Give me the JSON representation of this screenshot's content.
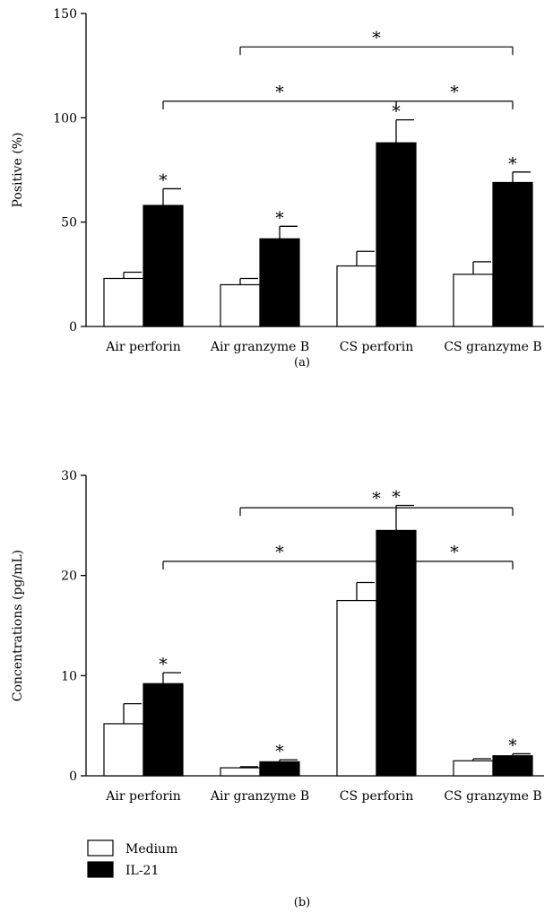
{
  "chart_data": [
    {
      "type": "bar",
      "caption": "(a)",
      "ylabel": "Positive (%)",
      "xlabel": "",
      "ylim": [
        0,
        150
      ],
      "yticks": [
        0,
        50,
        100,
        150
      ],
      "categories": [
        "Air perforin",
        "Air granzyme B",
        "CS perforin",
        "CS granzyme B"
      ],
      "series": [
        {
          "name": "Medium",
          "color": "#ffffff",
          "values": [
            23,
            20,
            29,
            25
          ],
          "errors": [
            3,
            3,
            7,
            6
          ],
          "markers": [
            "",
            "",
            "",
            ""
          ]
        },
        {
          "name": "IL-21",
          "color": "#000000",
          "values": [
            58,
            42,
            88,
            69
          ],
          "errors": [
            8,
            6,
            11,
            5
          ],
          "markers": [
            "*",
            "*",
            "*",
            "*"
          ]
        }
      ],
      "brackets": [
        {
          "from": [
            1,
            0
          ],
          "to": [
            3,
            1
          ],
          "level": 0.76,
          "label": "*"
        },
        {
          "from": [
            0,
            1
          ],
          "to": [
            2,
            1
          ],
          "level": 0.6,
          "label": "*"
        },
        {
          "from": [
            2,
            1
          ],
          "to": [
            3,
            1
          ],
          "level": 0.6,
          "label": "*"
        }
      ]
    },
    {
      "type": "bar",
      "caption": "(b)",
      "ylabel": "Concentrations (pg/mL)",
      "xlabel": "",
      "ylim": [
        0,
        30
      ],
      "yticks": [
        0,
        10,
        20,
        30
      ],
      "categories": [
        "Air perforin",
        "Air granzyme B",
        "CS perforin",
        "CS granzyme B"
      ],
      "series": [
        {
          "name": "Medium",
          "color": "#ffffff",
          "values": [
            5.2,
            0.8,
            17.5,
            1.5
          ],
          "errors": [
            2.0,
            0.1,
            1.8,
            0.2
          ],
          "markers": [
            "",
            "",
            "",
            ""
          ]
        },
        {
          "name": "IL-21",
          "color": "#000000",
          "values": [
            9.2,
            1.4,
            24.5,
            2.0
          ],
          "errors": [
            1.1,
            0.2,
            2.5,
            0.2
          ],
          "markers": [
            "*",
            "*",
            "*",
            "*"
          ]
        }
      ],
      "brackets": [
        {
          "from": [
            1,
            0
          ],
          "to": [
            3,
            1
          ],
          "level": 0.76,
          "label": "*"
        },
        {
          "from": [
            0,
            1
          ],
          "to": [
            2,
            1
          ],
          "level": 0.6,
          "label": "*"
        },
        {
          "from": [
            2,
            1
          ],
          "to": [
            3,
            1
          ],
          "level": 0.6,
          "label": "*"
        }
      ]
    }
  ],
  "legend": {
    "items": [
      {
        "label": "Medium",
        "color": "#ffffff"
      },
      {
        "label": "IL-21",
        "color": "#000000"
      }
    ]
  }
}
